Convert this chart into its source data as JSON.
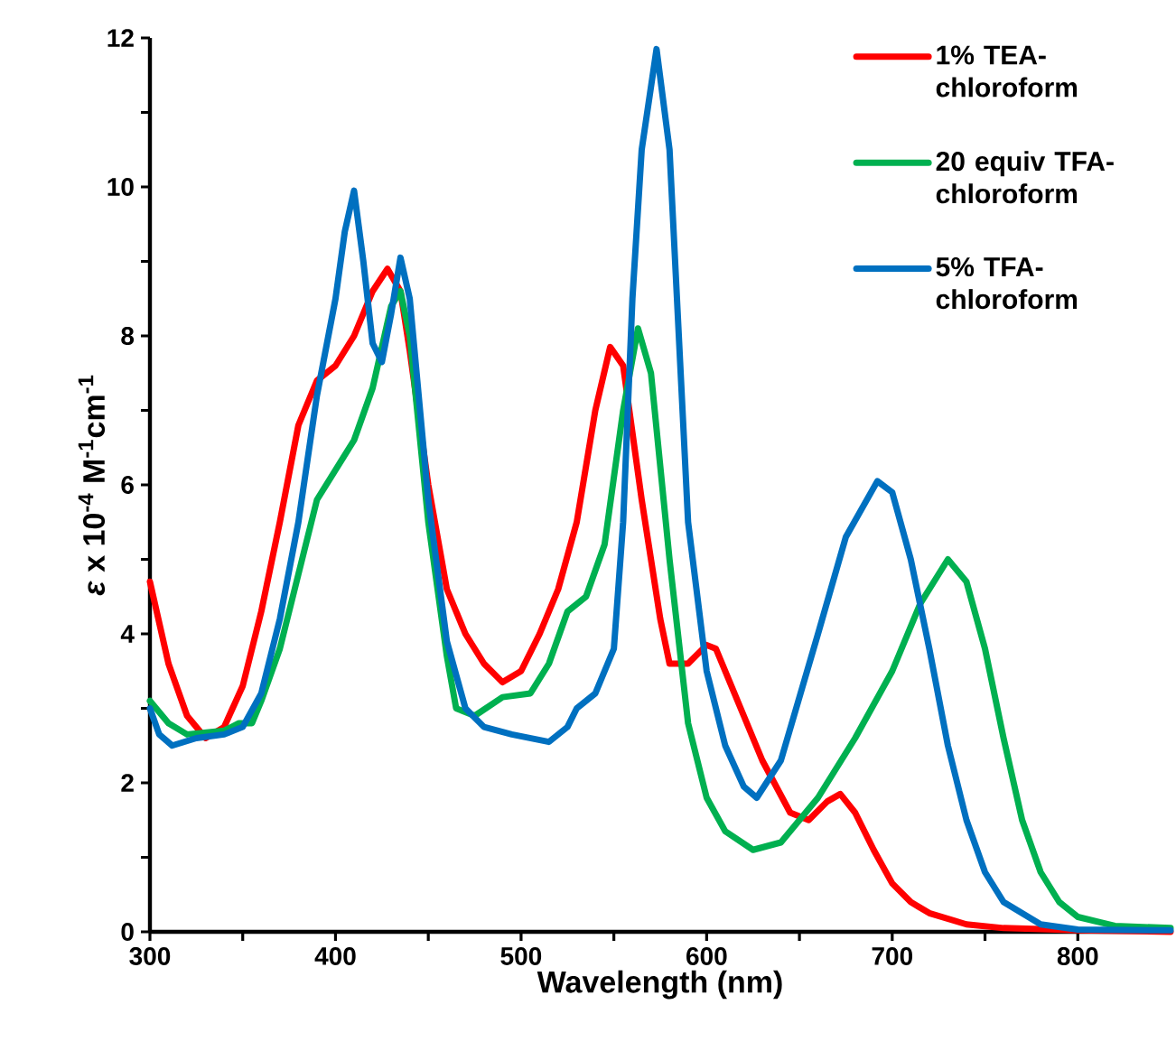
{
  "chart_data": {
    "type": "line",
    "xlabel": "Wavelength (nm)",
    "ylabel": "*ε* x 10$^{-4}$ M$^{-1}$cm$^{-1}$",
    "xlim": [
      300,
      850
    ],
    "ylim": [
      0,
      12
    ],
    "xticks": [
      300,
      {
        "value": 350,
        "label": null
      },
      400,
      {
        "value": 450,
        "label": null
      },
      500,
      {
        "value": 550,
        "label": null
      },
      600,
      {
        "value": 650,
        "label": null
      },
      700,
      {
        "value": 750,
        "label": null
      },
      800
    ],
    "yticks": [
      0,
      {
        "value": 1,
        "label": null
      },
      2,
      {
        "value": 3,
        "label": null
      },
      4,
      {
        "value": 5,
        "label": null
      },
      6,
      {
        "value": 7,
        "label": null
      },
      8,
      {
        "value": 9,
        "label": null
      },
      10,
      {
        "value": 11,
        "label": null
      },
      12
    ],
    "legend": "top right",
    "grid": false,
    "marker": "none",
    "line_style": "solid",
    "series": [
      {
        "name": "1% TEA-chloroform",
        "color": "#ff0000",
        "x": [
          300,
          310,
          320,
          330,
          340,
          350,
          360,
          370,
          380,
          390,
          400,
          410,
          420,
          428,
          435,
          440,
          450,
          460,
          470,
          480,
          490,
          500,
          510,
          520,
          530,
          540,
          548,
          555,
          565,
          575,
          580,
          590,
          600,
          605,
          620,
          630,
          645,
          655,
          665,
          672,
          680,
          690,
          700,
          710,
          720,
          740,
          760,
          800,
          850
        ],
        "values": [
          4.7,
          3.6,
          2.9,
          2.6,
          2.75,
          3.3,
          4.3,
          5.5,
          6.8,
          7.4,
          7.6,
          8.0,
          8.6,
          8.9,
          8.6,
          7.8,
          6.0,
          4.6,
          4.0,
          3.6,
          3.35,
          3.5,
          4.0,
          4.6,
          5.5,
          7.0,
          7.85,
          7.6,
          5.8,
          4.2,
          3.6,
          3.6,
          3.85,
          3.8,
          2.9,
          2.3,
          1.6,
          1.5,
          1.75,
          1.85,
          1.6,
          1.1,
          0.65,
          0.4,
          0.25,
          0.1,
          0.05,
          0.02,
          0.0
        ]
      },
      {
        "name": "20 equiv TFA-chloroform",
        "color": "#00b050",
        "x": [
          300,
          310,
          320,
          340,
          348,
          355,
          360,
          370,
          380,
          390,
          400,
          410,
          420,
          430,
          435,
          440,
          450,
          460,
          465,
          475,
          490,
          505,
          515,
          525,
          535,
          545,
          555,
          563,
          570,
          580,
          590,
          600,
          610,
          625,
          640,
          660,
          680,
          700,
          715,
          730,
          740,
          750,
          760,
          770,
          780,
          790,
          800,
          820,
          850
        ],
        "values": [
          3.1,
          2.8,
          2.65,
          2.7,
          2.8,
          2.8,
          3.1,
          3.8,
          4.8,
          5.8,
          6.2,
          6.6,
          7.3,
          8.4,
          8.6,
          8.0,
          5.5,
          3.7,
          3.0,
          2.9,
          3.15,
          3.2,
          3.6,
          4.3,
          4.5,
          5.2,
          7.0,
          8.1,
          7.5,
          5.0,
          2.8,
          1.8,
          1.35,
          1.1,
          1.2,
          1.8,
          2.6,
          3.5,
          4.4,
          5.0,
          4.7,
          3.8,
          2.6,
          1.5,
          0.8,
          0.4,
          0.2,
          0.08,
          0.05
        ]
      },
      {
        "name": "5% TFA-chloroform",
        "color": "#0070c0",
        "x": [
          300,
          305,
          312,
          325,
          340,
          350,
          360,
          370,
          380,
          390,
          400,
          405,
          410,
          415,
          420,
          425,
          430,
          435,
          440,
          450,
          460,
          470,
          480,
          495,
          515,
          525,
          530,
          540,
          550,
          555,
          560,
          565,
          573,
          580,
          585,
          590,
          600,
          610,
          620,
          627,
          640,
          660,
          675,
          692,
          700,
          710,
          720,
          730,
          740,
          750,
          760,
          780,
          800,
          850
        ],
        "values": [
          3.0,
          2.65,
          2.5,
          2.6,
          2.65,
          2.75,
          3.2,
          4.2,
          5.5,
          7.2,
          8.5,
          9.4,
          9.95,
          9.0,
          7.9,
          7.65,
          8.3,
          9.05,
          8.5,
          5.8,
          3.9,
          3.0,
          2.75,
          2.65,
          2.55,
          2.75,
          3.0,
          3.2,
          3.8,
          5.5,
          8.5,
          10.5,
          11.85,
          10.5,
          8.0,
          5.5,
          3.5,
          2.5,
          1.95,
          1.8,
          2.3,
          4.0,
          5.3,
          6.05,
          5.9,
          5.0,
          3.8,
          2.5,
          1.5,
          0.8,
          0.4,
          0.1,
          0.03,
          0.02
        ]
      }
    ]
  }
}
